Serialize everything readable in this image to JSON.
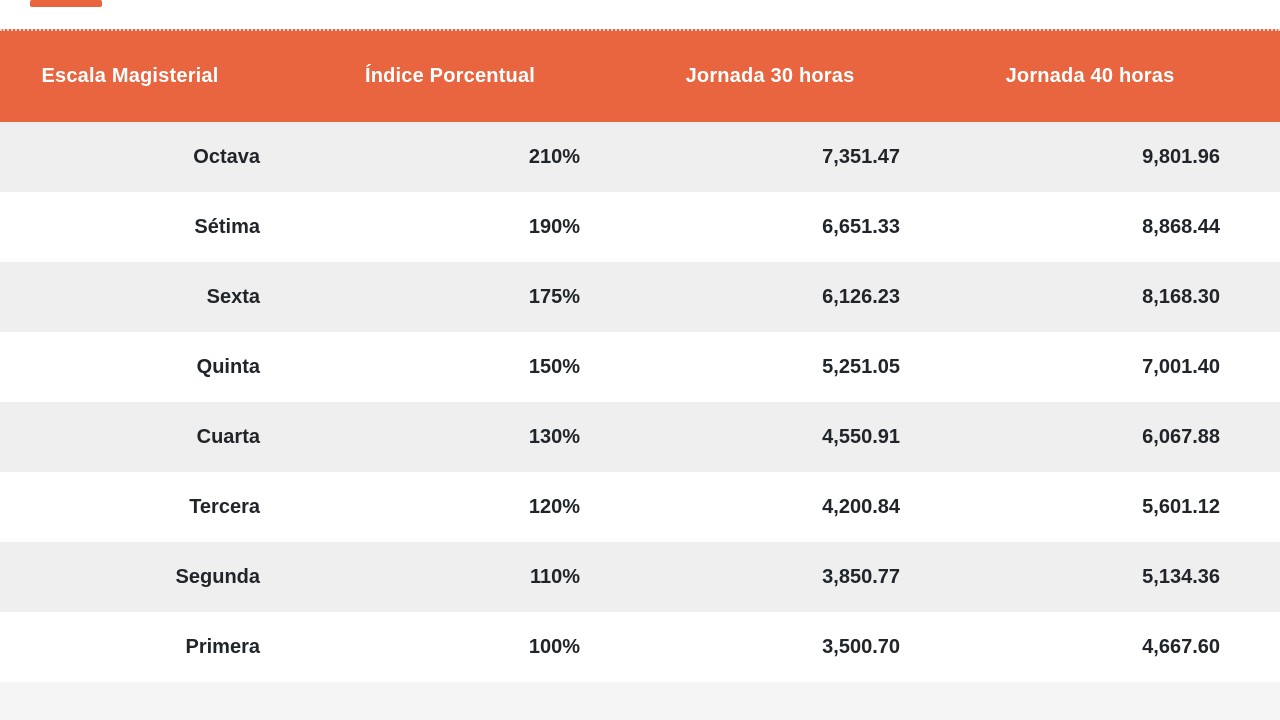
{
  "page": {
    "background": "#ffffff"
  },
  "accent": {
    "orange": "#e8653f",
    "zebra_gray": "#efefef",
    "bottom_band_gray": "#f5f5f5",
    "data_text": "#212529",
    "header_text": "#ffffff"
  },
  "table": {
    "columns": [
      {
        "key": "escala",
        "label": "Escala Magisterial"
      },
      {
        "key": "indice",
        "label": "Índice Porcentual"
      },
      {
        "key": "j30",
        "label": "Jornada 30 horas"
      },
      {
        "key": "j40",
        "label": "Jornada 40 horas"
      }
    ],
    "rows": [
      {
        "escala": "Octava",
        "indice": "210%",
        "j30": "7,351.47",
        "j40": "9,801.96"
      },
      {
        "escala": "Sétima",
        "indice": "190%",
        "j30": "6,651.33",
        "j40": "8,868.44"
      },
      {
        "escala": "Sexta",
        "indice": "175%",
        "j30": "6,126.23",
        "j40": "8,168.30"
      },
      {
        "escala": "Quinta",
        "indice": "150%",
        "j30": "5,251.05",
        "j40": "7,001.40"
      },
      {
        "escala": "Cuarta",
        "indice": "130%",
        "j30": "4,550.91",
        "j40": "6,067.88"
      },
      {
        "escala": "Tercera",
        "indice": "120%",
        "j30": "4,200.84",
        "j40": "5,601.12"
      },
      {
        "escala": "Segunda",
        "indice": "110%",
        "j30": "3,850.77",
        "j40": "5,134.36"
      },
      {
        "escala": "Primera",
        "indice": "100%",
        "j30": "3,500.70",
        "j40": "4,667.60"
      }
    ]
  }
}
